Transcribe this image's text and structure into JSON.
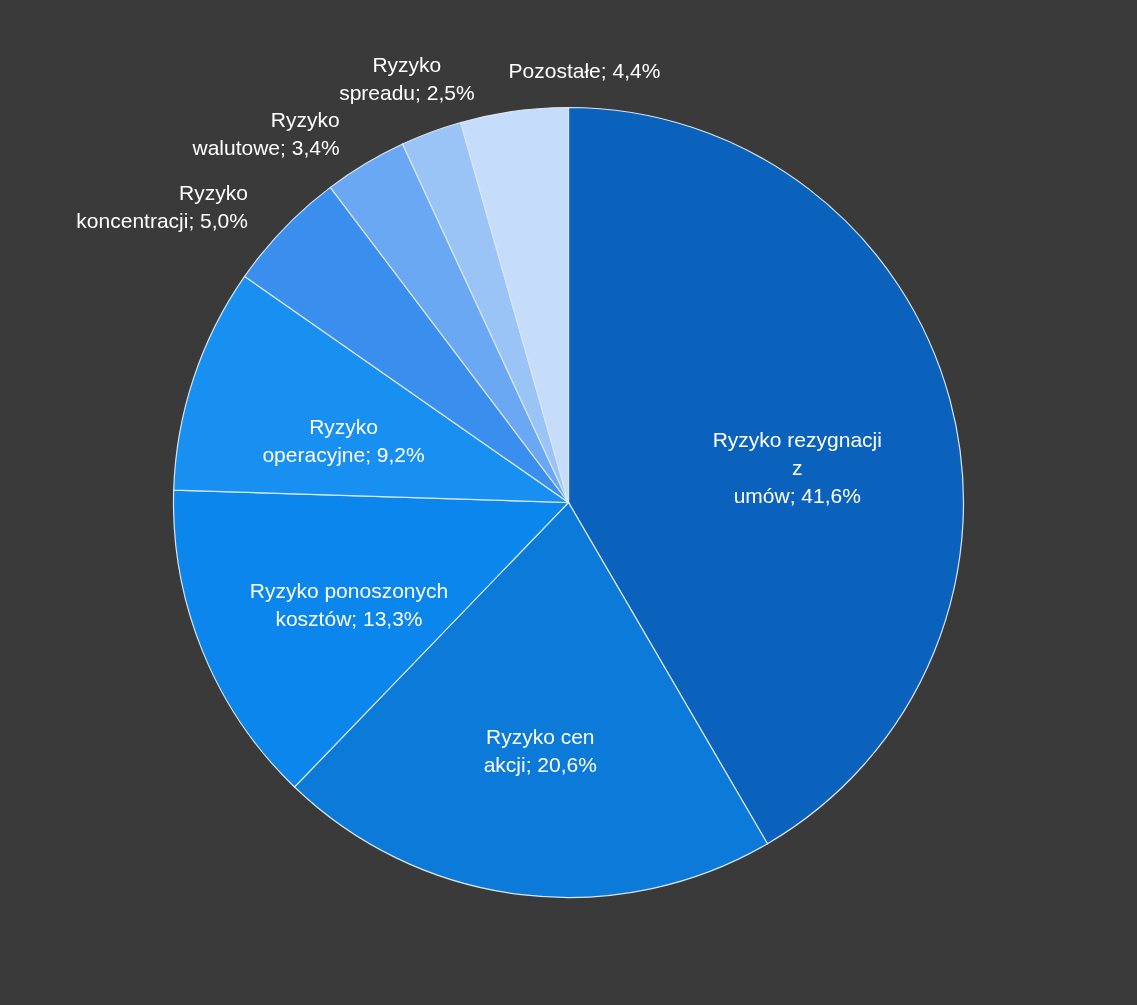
{
  "chart_data": {
    "type": "pie",
    "categories": [
      "Ryzyko rezygnacji z umów",
      "Ryzyko cen akcji",
      "Ryzyko ponoszonych kosztów",
      "Ryzyko operacyjne",
      "Ryzyko koncentracji",
      "Ryzyko walutowe",
      "Ryzyko spreadu",
      "Pozostałe"
    ],
    "values": [
      41.6,
      20.6,
      13.3,
      9.2,
      5.0,
      3.4,
      2.5,
      4.4
    ],
    "value_labels": [
      "41,6%",
      "20,6%",
      "13,3%",
      "9,2%",
      "5,0%",
      "3,4%",
      "2,5%",
      "4,4%"
    ],
    "colors": [
      "#0a62bd",
      "#0b7ad9",
      "#0a86ec",
      "#1790f2",
      "#3a8fee",
      "#6aa8f4",
      "#9ac3f6",
      "#c6dcfb"
    ]
  }
}
